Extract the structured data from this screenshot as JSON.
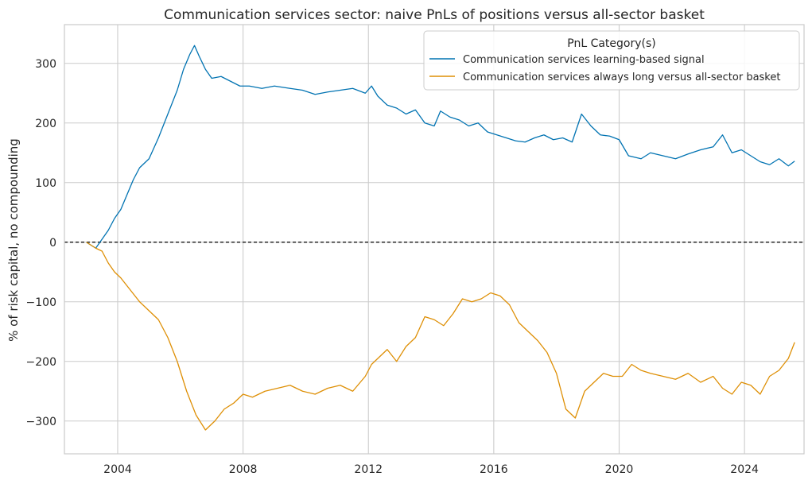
{
  "chart_data": {
    "type": "line",
    "title": "Communication services sector: naive PnLs of positions versus all-sector basket",
    "ylabel": "% of risk capital, no compounding",
    "xlabel": "",
    "xlim": [
      2002.3,
      2025.9
    ],
    "ylim": [
      -355,
      365
    ],
    "x_ticks": [
      2004,
      2008,
      2012,
      2016,
      2020,
      2024
    ],
    "x_tick_labels": [
      "2004",
      "2008",
      "2012",
      "2016",
      "2020",
      "2024"
    ],
    "y_ticks": [
      -300,
      -200,
      -100,
      0,
      100,
      200,
      300
    ],
    "y_tick_labels": [
      "−300",
      "−200",
      "−100",
      "0",
      "100",
      "200",
      "300"
    ],
    "grid": true,
    "zero_line": {
      "y": 0,
      "style": "dashed",
      "color": "#000000"
    },
    "legend": {
      "title": "PnL Category(s)",
      "position": "top-right"
    },
    "series": [
      {
        "name": "Communication services learning-based signal",
        "color": "#0173b2",
        "x": [
          2003.0,
          2003.3,
          2003.5,
          2003.7,
          2003.9,
          2004.1,
          2004.3,
          2004.5,
          2004.7,
          2005.0,
          2005.3,
          2005.6,
          2005.9,
          2006.1,
          2006.3,
          2006.45,
          2006.6,
          2006.8,
          2007.0,
          2007.3,
          2007.6,
          2007.9,
          2008.2,
          2008.6,
          2009.0,
          2009.5,
          2009.9,
          2010.3,
          2010.7,
          2011.1,
          2011.5,
          2011.9,
          2012.1,
          2012.3,
          2012.6,
          2012.9,
          2013.2,
          2013.5,
          2013.8,
          2014.1,
          2014.3,
          2014.6,
          2014.9,
          2015.2,
          2015.5,
          2015.8,
          2016.1,
          2016.4,
          2016.7,
          2017.0,
          2017.3,
          2017.6,
          2017.9,
          2018.2,
          2018.5,
          2018.8,
          2019.1,
          2019.4,
          2019.7,
          2020.0,
          2020.3,
          2020.7,
          2021.0,
          2021.4,
          2021.8,
          2022.2,
          2022.6,
          2023.0,
          2023.3,
          2023.6,
          2023.9,
          2024.2,
          2024.5,
          2024.8,
          2025.1,
          2025.4,
          2025.6
        ],
        "y": [
          0,
          -10,
          5,
          20,
          40,
          55,
          80,
          105,
          125,
          140,
          175,
          215,
          255,
          290,
          315,
          330,
          312,
          290,
          275,
          278,
          270,
          262,
          262,
          258,
          262,
          258,
          255,
          248,
          252,
          255,
          258,
          250,
          262,
          245,
          230,
          225,
          215,
          222,
          200,
          195,
          220,
          210,
          205,
          195,
          200,
          185,
          180,
          175,
          170,
          168,
          175,
          180,
          172,
          175,
          168,
          215,
          195,
          180,
          178,
          172,
          145,
          140,
          150,
          145,
          140,
          148,
          155,
          160,
          180,
          150,
          155,
          145,
          135,
          130,
          140,
          128,
          136
        ]
      },
      {
        "name": "Communication services always long versus all-sector basket",
        "color": "#de8f05",
        "x": [
          2003.0,
          2003.3,
          2003.5,
          2003.7,
          2003.9,
          2004.1,
          2004.4,
          2004.7,
          2005.0,
          2005.3,
          2005.6,
          2005.9,
          2006.2,
          2006.5,
          2006.8,
          2007.1,
          2007.4,
          2007.7,
          2008.0,
          2008.3,
          2008.7,
          2009.1,
          2009.5,
          2009.9,
          2010.3,
          2010.7,
          2011.1,
          2011.5,
          2011.9,
          2012.1,
          2012.3,
          2012.6,
          2012.9,
          2013.2,
          2013.5,
          2013.8,
          2014.1,
          2014.4,
          2014.7,
          2015.0,
          2015.3,
          2015.6,
          2015.9,
          2016.2,
          2016.5,
          2016.8,
          2017.1,
          2017.4,
          2017.7,
          2018.0,
          2018.3,
          2018.6,
          2018.9,
          2019.2,
          2019.5,
          2019.8,
          2020.1,
          2020.4,
          2020.7,
          2021.0,
          2021.4,
          2021.8,
          2022.2,
          2022.6,
          2023.0,
          2023.3,
          2023.6,
          2023.9,
          2024.2,
          2024.5,
          2024.8,
          2025.1,
          2025.4,
          2025.6
        ],
        "y": [
          0,
          -10,
          -15,
          -35,
          -50,
          -60,
          -80,
          -100,
          -115,
          -130,
          -160,
          -200,
          -250,
          -290,
          -315,
          -300,
          -280,
          -270,
          -255,
          -260,
          -250,
          -245,
          -240,
          -250,
          -255,
          -245,
          -240,
          -250,
          -225,
          -205,
          -195,
          -180,
          -200,
          -175,
          -160,
          -125,
          -130,
          -140,
          -120,
          -95,
          -100,
          -95,
          -85,
          -90,
          -105,
          -135,
          -150,
          -165,
          -185,
          -220,
          -280,
          -295,
          -250,
          -235,
          -220,
          -225,
          -225,
          -205,
          -215,
          -220,
          -225,
          -230,
          -220,
          -235,
          -225,
          -245,
          -255,
          -235,
          -240,
          -255,
          -225,
          -215,
          -195,
          -168
        ]
      }
    ]
  }
}
